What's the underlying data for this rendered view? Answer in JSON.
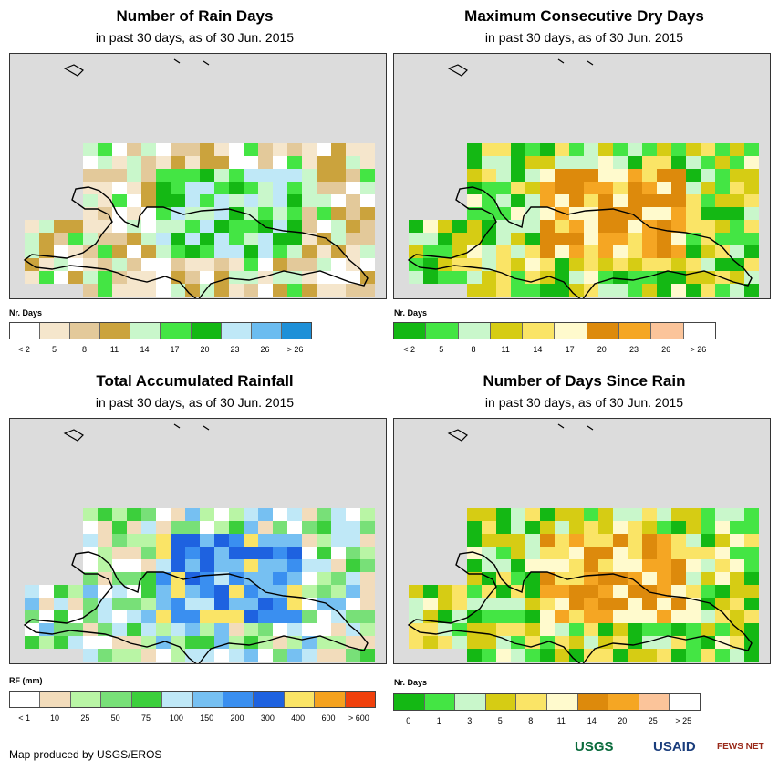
{
  "panels": [
    {
      "id": "rain-days",
      "title": "Number of Rain Days",
      "subtitle": "in past 30 days, as of 30 Jun. 2015",
      "legend_title": "Nr. Days",
      "legend_colors": [
        "#ffffff",
        "#f5e6cc",
        "#e3c99a",
        "#cba33d",
        "#c9f7cb",
        "#44e544",
        "#14b814",
        "#bfe8f7",
        "#6bbcf0",
        "#1e90d8"
      ],
      "legend_labels": [
        "< 2",
        "5",
        "8",
        "11",
        "14",
        "17",
        "20",
        "23",
        "26",
        "> 26"
      ]
    },
    {
      "id": "max-dry-days",
      "title": "Maximum Consecutive Dry Days",
      "subtitle": "in past 30 days, as of 30 Jun. 2015",
      "legend_title": "Nr. Days",
      "legend_colors": [
        "#14b814",
        "#44e544",
        "#c9f7cb",
        "#d6cc14",
        "#fae466",
        "#fffacd",
        "#dd8a0c",
        "#f5a623",
        "#fbc49a",
        "#ffffff"
      ],
      "legend_labels": [
        "< 2",
        "5",
        "8",
        "11",
        "14",
        "17",
        "20",
        "23",
        "26",
        "> 26"
      ]
    },
    {
      "id": "total-rainfall",
      "title": "Total Accumulated Rainfall",
      "subtitle": "in past 30 days, as of 30 Jun. 2015",
      "legend_title": "RF (mm)",
      "legend_colors": [
        "#ffffff",
        "#f2dcbb",
        "#b9f5a5",
        "#78e078",
        "#3ccf3c",
        "#bfe8f7",
        "#76c0f2",
        "#3a8ff0",
        "#1e62e0",
        "#fae466",
        "#f5a21e",
        "#f0400c"
      ],
      "legend_labels": [
        "< 1",
        "10",
        "25",
        "50",
        "75",
        "100",
        "150",
        "200",
        "300",
        "400",
        "600",
        "> 600"
      ]
    },
    {
      "id": "days-since-rain",
      "title": "Number of Days Since Rain",
      "subtitle": "in past 30 days, as of 30 Jun. 2015",
      "legend_title": "Nr. Days",
      "legend_colors": [
        "#14b814",
        "#44e544",
        "#c9f7cb",
        "#d6cc14",
        "#fae466",
        "#fffacd",
        "#dd8a0c",
        "#f5a623",
        "#fbc49a",
        "#ffffff"
      ],
      "legend_labels": [
        "0",
        "1",
        "3",
        "5",
        "8",
        "11",
        "14",
        "20",
        "25",
        "> 25"
      ]
    }
  ],
  "footer": {
    "credit": "Map produced by USGS/EROS",
    "logos": [
      "USGS",
      "USAID",
      "FEWS NET"
    ]
  }
}
